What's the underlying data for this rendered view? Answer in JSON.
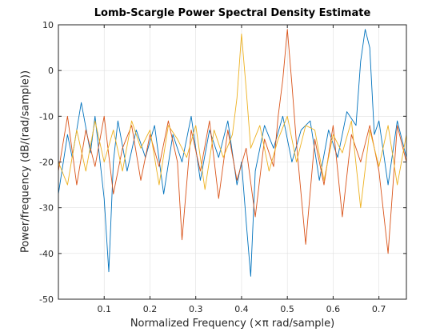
{
  "chart_data": {
    "type": "line",
    "title": "Lomb-Scargle Power Spectral Density Estimate",
    "xlabel": "Normalized Frequency  (×π rad/sample)",
    "ylabel": "Power/frequency (dB/(rad/sample))",
    "xlim": [
      0.0,
      0.76
    ],
    "ylim": [
      -50,
      10
    ],
    "xticks": [
      0.1,
      0.2,
      0.3,
      0.4,
      0.5,
      0.6,
      0.7
    ],
    "yticks": [
      10,
      0,
      -10,
      -20,
      -30,
      -40,
      -50
    ],
    "grid": true,
    "legend": "none",
    "series": [
      {
        "color": "#0072BD",
        "x": [
          0.0,
          0.02,
          0.03,
          0.05,
          0.07,
          0.08,
          0.1,
          0.11,
          0.12,
          0.13,
          0.15,
          0.17,
          0.19,
          0.21,
          0.23,
          0.25,
          0.27,
          0.29,
          0.31,
          0.33,
          0.35,
          0.37,
          0.39,
          0.4,
          0.41,
          0.42,
          0.43,
          0.45,
          0.47,
          0.49,
          0.51,
          0.53,
          0.55,
          0.57,
          0.59,
          0.61,
          0.63,
          0.65,
          0.66,
          0.67,
          0.68,
          0.69,
          0.7,
          0.72,
          0.74,
          0.76
        ],
        "y": [
          -27,
          -14,
          -19,
          -7,
          -18,
          -10,
          -28,
          -44,
          -20,
          -11,
          -22,
          -13,
          -19,
          -12,
          -27,
          -14,
          -20,
          -10,
          -24,
          -13,
          -19,
          -11,
          -25,
          -20,
          -33,
          -45,
          -22,
          -12,
          -17,
          -10,
          -20,
          -13,
          -11,
          -24,
          -13,
          -19,
          -9,
          -12,
          2,
          9,
          5,
          -14,
          -11,
          -25,
          -11,
          -19
        ]
      },
      {
        "color": "#D95319",
        "x": [
          0.0,
          0.02,
          0.04,
          0.06,
          0.08,
          0.1,
          0.12,
          0.14,
          0.16,
          0.18,
          0.2,
          0.22,
          0.24,
          0.26,
          0.27,
          0.29,
          0.31,
          0.33,
          0.35,
          0.37,
          0.39,
          0.41,
          0.43,
          0.45,
          0.47,
          0.48,
          0.49,
          0.5,
          0.51,
          0.52,
          0.54,
          0.56,
          0.58,
          0.6,
          0.62,
          0.64,
          0.66,
          0.68,
          0.7,
          0.72,
          0.74,
          0.76
        ],
        "y": [
          -22,
          -10,
          -25,
          -13,
          -21,
          -10,
          -27,
          -17,
          -12,
          -24,
          -14,
          -21,
          -11,
          -20,
          -37,
          -13,
          -22,
          -11,
          -28,
          -13,
          -24,
          -17,
          -32,
          -15,
          -21,
          -10,
          -2,
          9,
          -3,
          -16,
          -38,
          -15,
          -25,
          -12,
          -32,
          -14,
          -20,
          -12,
          -22,
          -40,
          -12,
          -20
        ]
      },
      {
        "color": "#EDB120",
        "x": [
          0.0,
          0.02,
          0.04,
          0.06,
          0.08,
          0.1,
          0.12,
          0.14,
          0.16,
          0.18,
          0.2,
          0.22,
          0.24,
          0.26,
          0.28,
          0.3,
          0.32,
          0.34,
          0.36,
          0.38,
          0.39,
          0.4,
          0.41,
          0.42,
          0.44,
          0.46,
          0.48,
          0.5,
          0.52,
          0.54,
          0.56,
          0.58,
          0.6,
          0.62,
          0.64,
          0.66,
          0.68,
          0.7,
          0.72,
          0.74,
          0.76
        ],
        "y": [
          -20,
          -25,
          -13,
          -22,
          -11,
          -20,
          -13,
          -22,
          -11,
          -17,
          -13,
          -25,
          -12,
          -15,
          -19,
          -12,
          -26,
          -13,
          -19,
          -14,
          -6,
          8,
          -4,
          -17,
          -12,
          -22,
          -15,
          -10,
          -20,
          -12,
          -13,
          -24,
          -14,
          -18,
          -11,
          -30,
          -13,
          -21,
          -12,
          -25,
          -14
        ]
      }
    ]
  }
}
